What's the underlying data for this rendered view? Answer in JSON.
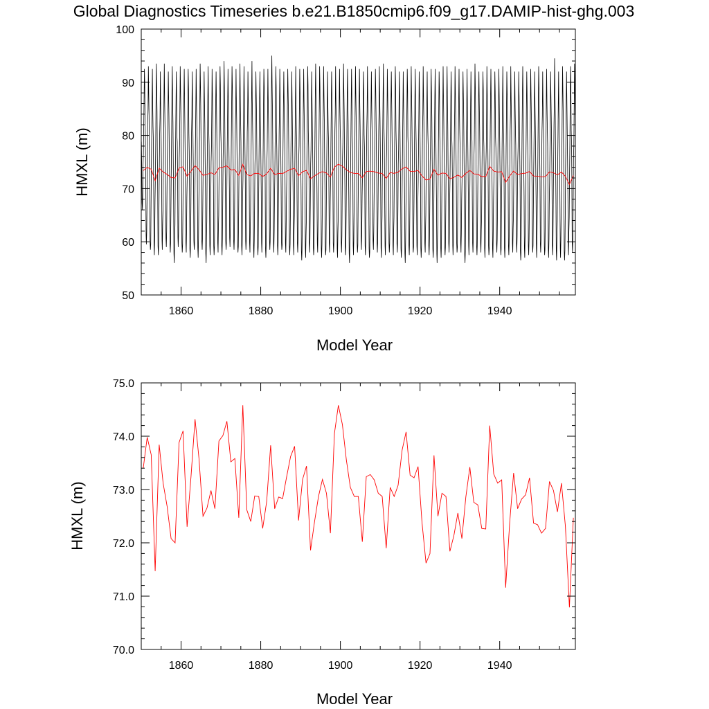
{
  "page_title": "Global Diagnostics Timeseries b.e21.B1850cmip6.f09_g17.DAMIP-hist-ghg.003",
  "colors": {
    "monthly": "#000000",
    "annual": "#ff0000",
    "frame": "#000000"
  },
  "chart_data": [
    {
      "type": "line",
      "xlabel": "Model Year",
      "ylabel": "HMXL (m)",
      "xlim": [
        1850,
        1959
      ],
      "ylim": [
        50,
        100
      ],
      "xticks": [
        "1860",
        "1880",
        "1900",
        "1920",
        "1940"
      ],
      "yticks": [
        "50",
        "60",
        "70",
        "80",
        "90",
        "100"
      ],
      "series": [
        {
          "style": "monthly climatology-driven seasonal cycle (black)",
          "x_start": 1850.0417,
          "x_step": 0.08333,
          "annual_max": [
            92.5,
            93,
            92.5,
            93.5,
            92,
            93.5,
            92,
            93,
            92,
            93,
            92.5,
            92.5,
            92,
            92.5,
            93.5,
            92,
            93,
            92.5,
            92,
            93,
            94,
            92.5,
            93,
            92.5,
            93.5,
            93,
            92,
            94,
            92,
            92,
            92.5,
            92.5,
            95,
            93,
            92.5,
            92,
            92.5,
            92,
            93,
            92.5,
            92.5,
            93,
            92,
            93.5,
            93,
            93,
            92,
            92,
            93,
            92.5,
            93.5,
            92.5,
            92.5,
            93,
            92.5,
            92,
            93,
            92,
            92.5,
            93,
            93.5,
            92.5,
            92,
            93,
            92,
            92,
            92.5,
            93,
            92.5,
            92,
            93,
            92,
            92.5,
            92.5,
            92,
            93,
            93,
            92,
            93,
            92.5,
            92,
            92.5,
            92,
            93.5,
            92,
            92,
            93,
            92.5,
            92,
            92.5,
            93,
            92,
            93,
            92,
            92,
            93,
            92,
            92.5,
            92,
            93,
            92,
            92.5,
            92,
            94.5,
            92,
            93,
            92,
            93,
            93.5,
            92.5
          ],
          "annual_min": [
            66,
            59.5,
            58.5,
            57.5,
            57.5,
            58.5,
            59,
            58,
            56,
            59,
            58,
            58,
            57,
            58.5,
            57,
            58.5,
            56,
            57.5,
            57.5,
            58,
            57.5,
            58.5,
            59,
            58.5,
            58,
            57.5,
            58.5,
            58,
            57,
            57.5,
            58,
            57,
            58.5,
            58,
            57.5,
            58.5,
            58,
            57.5,
            57.5,
            58,
            56.5,
            57,
            58,
            57.5,
            58,
            57,
            57.5,
            58,
            58,
            57,
            58,
            57.5,
            56,
            57.5,
            58,
            58.5,
            57.5,
            57,
            58.5,
            58,
            57,
            57.5,
            58,
            57.5,
            58,
            57,
            56,
            57.5,
            58,
            57.5,
            57,
            58,
            57.5,
            57,
            56,
            57,
            57.5,
            58,
            57.5,
            58,
            58,
            56,
            57.5,
            58,
            57.5,
            58,
            57,
            57.5,
            57,
            58,
            57.5,
            57,
            57.5,
            58,
            58,
            56.5,
            57,
            57.5,
            58,
            57,
            58,
            57.5,
            57,
            57.5,
            56.5,
            57,
            56.5,
            57.5,
            58
          ]
        },
        {
          "style": "annual mean (red)",
          "x_start": 1850.5,
          "x_step": 1,
          "values": [
            73.4,
            73.98,
            73.65,
            71.47,
            73.84,
            73.12,
            72.68,
            72.08,
            72.0,
            73.88,
            74.1,
            72.3,
            73.25,
            74.32,
            73.58,
            72.5,
            72.65,
            72.98,
            72.64,
            73.91,
            74.01,
            74.28,
            73.52,
            73.58,
            72.47,
            74.58,
            72.62,
            72.4,
            72.88,
            72.87,
            72.27,
            72.78,
            73.83,
            72.64,
            72.86,
            72.83,
            73.24,
            73.62,
            73.81,
            72.42,
            73.19,
            73.44,
            71.86,
            72.39,
            72.87,
            73.19,
            72.93,
            72.18,
            74.05,
            74.58,
            74.22,
            73.56,
            73.04,
            72.87,
            72.87,
            72.02,
            73.24,
            73.28,
            73.18,
            72.93,
            72.87,
            71.9,
            73.04,
            72.87,
            73.08,
            73.74,
            74.08,
            73.27,
            73.22,
            73.43,
            72.38,
            71.62,
            71.8,
            73.64,
            72.5,
            72.93,
            72.87,
            71.84,
            72.14,
            72.56,
            72.08,
            72.86,
            73.42,
            72.76,
            72.71,
            72.27,
            72.26,
            74.2,
            73.29,
            73.12,
            73.18,
            71.16,
            72.37,
            73.31,
            72.64,
            72.82,
            72.9,
            73.22,
            72.37,
            72.34,
            72.18,
            72.27,
            73.15,
            72.98,
            72.58,
            73.12,
            72.31,
            70.79,
            72.47
          ]
        }
      ]
    },
    {
      "type": "line",
      "xlabel": "Model Year",
      "ylabel": "HMXL (m)",
      "xlim": [
        1850,
        1959
      ],
      "ylim": [
        70,
        75
      ],
      "xticks": [
        "1860",
        "1880",
        "1900",
        "1920",
        "1940"
      ],
      "yticks": [
        "70.0",
        "71.0",
        "72.0",
        "73.0",
        "74.0",
        "75.0"
      ],
      "series": [
        {
          "style": "annual mean (red)",
          "ref": "same annual mean values as the red series in the upper panel"
        }
      ]
    }
  ]
}
